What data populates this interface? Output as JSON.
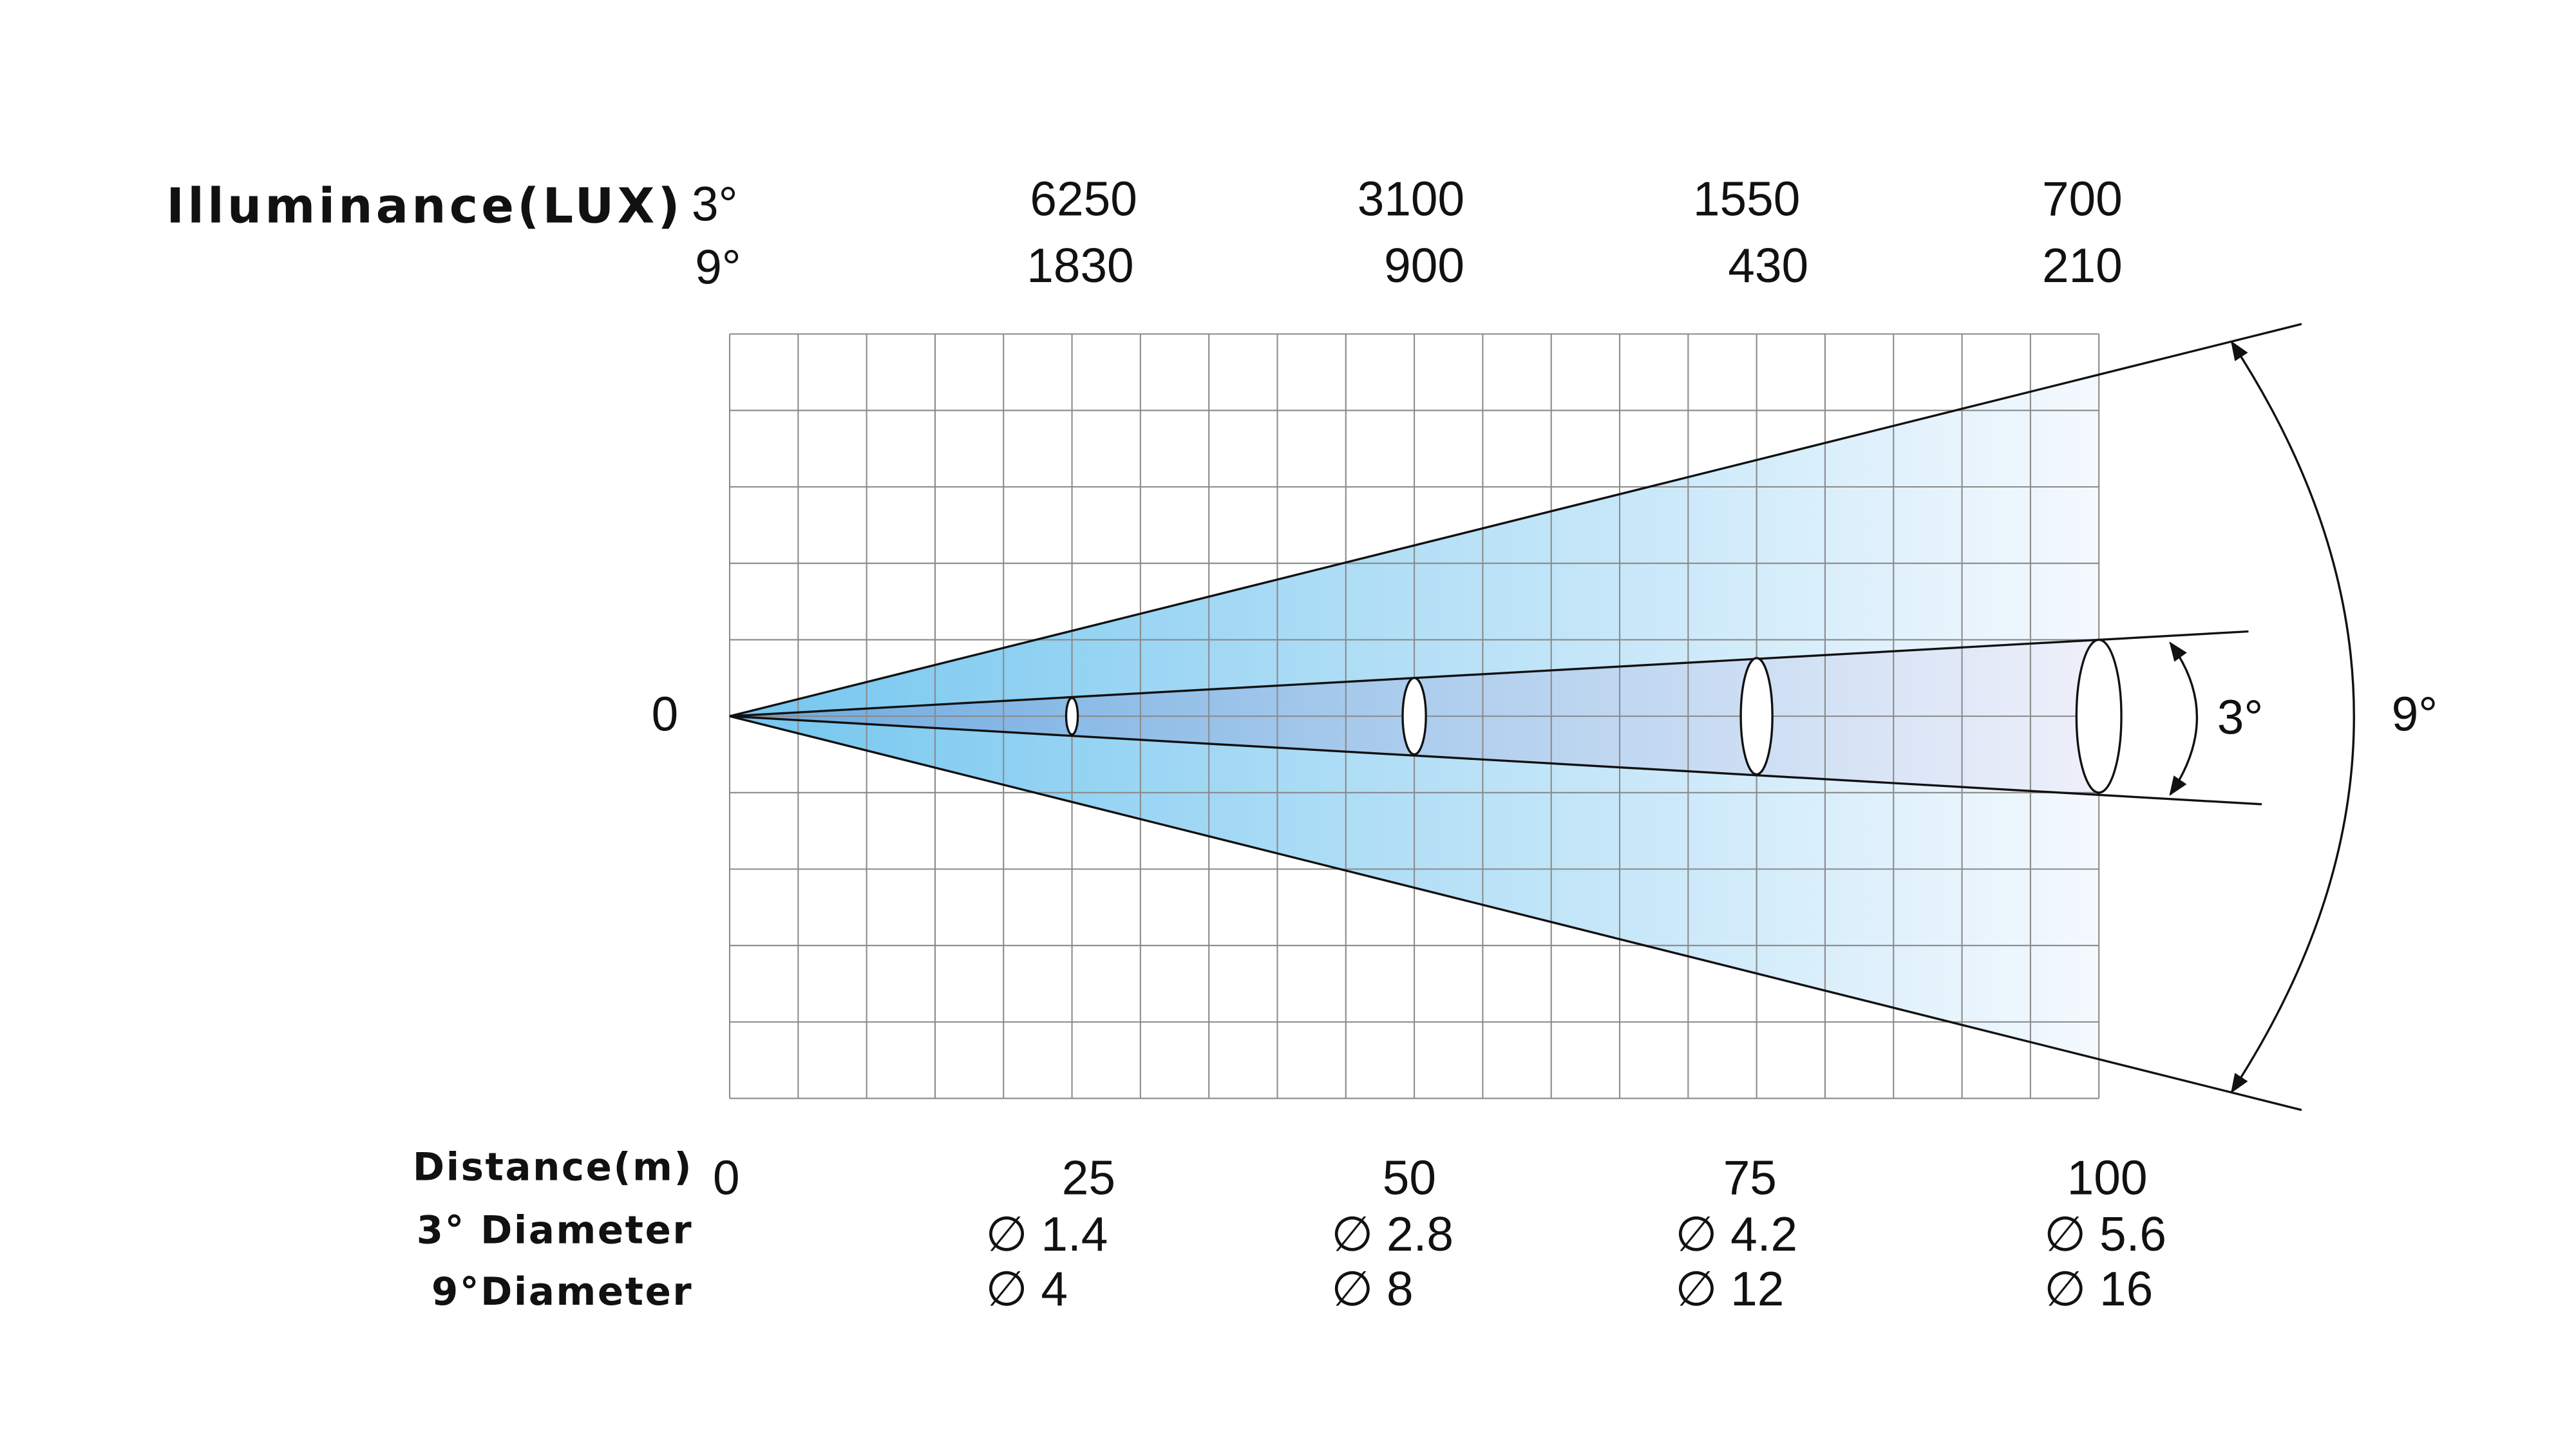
{
  "header": {
    "title": "Illuminance(LUX)",
    "beam_3_label": "3°",
    "beam_9_label": "9°"
  },
  "lux_3": [
    "6250",
    "3100",
    "1550",
    "700"
  ],
  "lux_9": [
    "1830",
    "900",
    "430",
    "210"
  ],
  "origin_label": "0",
  "rows": {
    "distance_label": "Distance(m)",
    "diameter_3_label": "3° Diameter",
    "diameter_9_label": "9°Diameter"
  },
  "distances": [
    "0",
    "25",
    "50",
    "75",
    "100"
  ],
  "diameter_3": [
    "∅ 1.4",
    "∅ 2.8",
    "∅ 4.2",
    "∅ 5.6"
  ],
  "diameter_9": [
    "∅ 4",
    "∅ 8",
    "∅ 12",
    "∅ 16"
  ],
  "angle_labels": {
    "narrow": "3°",
    "wide": "9°"
  }
}
